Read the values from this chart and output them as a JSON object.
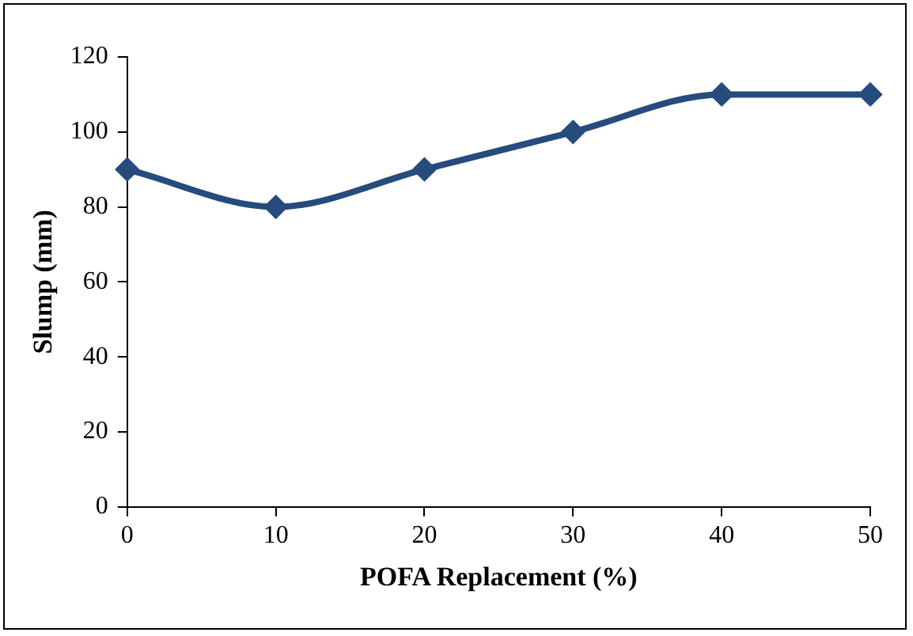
{
  "chart_data": {
    "type": "line",
    "xlabel": "POFA Replacement (%)",
    "ylabel": "Slump (mm)",
    "x": [
      0,
      10,
      20,
      30,
      40,
      50
    ],
    "series": [
      {
        "color": "#264b7d",
        "values": [
          90,
          80,
          90,
          100,
          110,
          110
        ]
      }
    ],
    "xlim": [
      0,
      50
    ],
    "xticks": [
      0,
      10,
      20,
      30,
      40,
      50
    ],
    "ylim": [
      0,
      120
    ],
    "yticks": [
      0,
      20,
      40,
      60,
      80,
      100,
      120
    ],
    "marker": "diamond",
    "line_style": "solid"
  }
}
